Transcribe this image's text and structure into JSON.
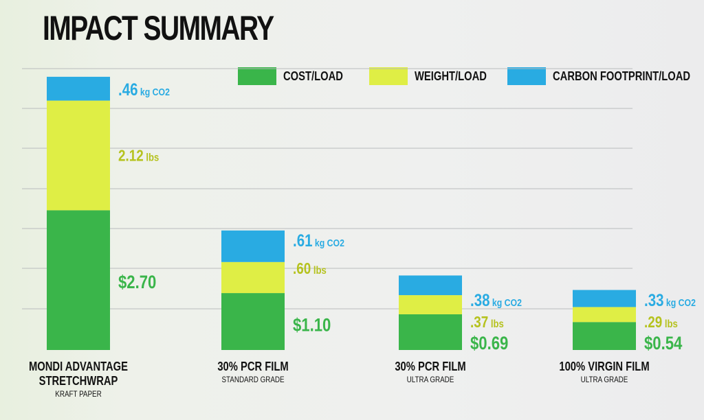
{
  "title": "IMPACT SUMMARY",
  "colors": {
    "cost": "#3ab54a",
    "weight": "#dfee45",
    "carbon": "#29abe2",
    "cost_text": "#3ab54a",
    "weight_text": "#b5c21e",
    "carbon_text": "#29abe2",
    "grid": "#b9bcbd"
  },
  "legend": [
    {
      "key": "cost",
      "label": "COST/LOAD"
    },
    {
      "key": "weight",
      "label": "WEIGHT/LOAD"
    },
    {
      "key": "carbon",
      "label": "CARBON FOOTPRINT/LOAD"
    }
  ],
  "chart_data": {
    "type": "bar",
    "stacked": true,
    "title": "IMPACT SUMMARY",
    "categories": [
      {
        "name_lines": [
          "MONDI ADVANTAGE",
          "STRETCHWRAP"
        ],
        "sub": "KRAFT PAPER"
      },
      {
        "name_lines": [
          "30% PCR FILM"
        ],
        "sub": "STANDARD GRADE"
      },
      {
        "name_lines": [
          "30% PCR FILM"
        ],
        "sub": "ULTRA GRADE"
      },
      {
        "name_lines": [
          "100% VIRGIN FILM"
        ],
        "sub": "ULTRA GRADE"
      }
    ],
    "series": [
      {
        "name": "COST/LOAD",
        "key": "cost",
        "values": [
          2.7,
          1.1,
          0.69,
          0.54
        ],
        "labels": [
          "$2.70",
          "$1.10",
          "$0.69",
          "$0.54"
        ]
      },
      {
        "name": "WEIGHT/LOAD",
        "key": "weight",
        "values": [
          2.12,
          0.6,
          0.37,
          0.29
        ],
        "labels": [
          "2.12 lbs",
          ".60 lbs",
          ".37 lbs",
          ".29 lbs"
        ]
      },
      {
        "name": "CARBON FOOTPRINT/LOAD",
        "key": "carbon",
        "values": [
          0.46,
          0.61,
          0.38,
          0.33
        ],
        "labels": [
          ".46 kg CO2",
          ".61 kg CO2",
          ".38 kg CO2",
          ".33 kg CO2"
        ]
      }
    ],
    "grid": true,
    "legend_position": "top-right"
  }
}
